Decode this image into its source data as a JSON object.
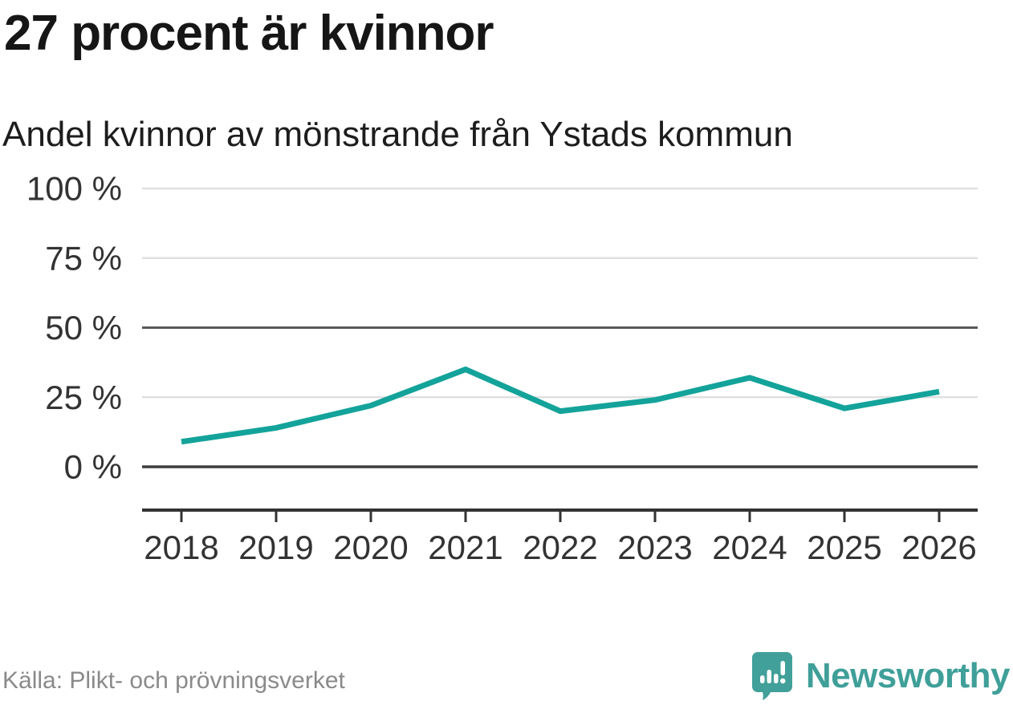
{
  "header": {
    "title": "27 procent är kvinnor",
    "subtitle": "Andel kvinnor av mönstrande från Ystads kommun"
  },
  "footer": {
    "source": "Källa: Plikt- och prövningsverket",
    "brand": "Newsworthy"
  },
  "colors": {
    "line": "#13A39A",
    "brand": "#3F9F99",
    "grid_light": "#E0E0E0",
    "grid_emphasis": "#595959",
    "axis_zero": "#3D3D3D",
    "axis_bottom": "#333333",
    "axis_text": "#333333",
    "source_text": "#8A8A8A"
  },
  "chart_data": {
    "type": "line",
    "title": "27 procent är kvinnor",
    "subtitle": "Andel kvinnor av mönstrande från Ystads kommun",
    "source": "Källa: Plikt- och prövningsverket",
    "x": [
      "2018",
      "2019",
      "2020",
      "2021",
      "2022",
      "2023",
      "2024",
      "2025",
      "2026"
    ],
    "series": [
      {
        "name": "Andel kvinnor av mönstrande, Ystads kommun",
        "values": [
          9,
          14,
          22,
          35,
          20,
          24,
          32,
          21,
          27
        ]
      }
    ],
    "unit": "%",
    "xlabel": "",
    "ylabel": "",
    "ylim": [
      0,
      100
    ],
    "y_ticks": [
      0,
      25,
      50,
      75,
      100
    ],
    "y_tick_labels": [
      "0 %",
      "25 %",
      "50 %",
      "75 %",
      "100 %"
    ],
    "grid": true,
    "emphasized_y": 50,
    "baseline_y": 0,
    "legend": "none",
    "line_color": "#13A39A"
  }
}
